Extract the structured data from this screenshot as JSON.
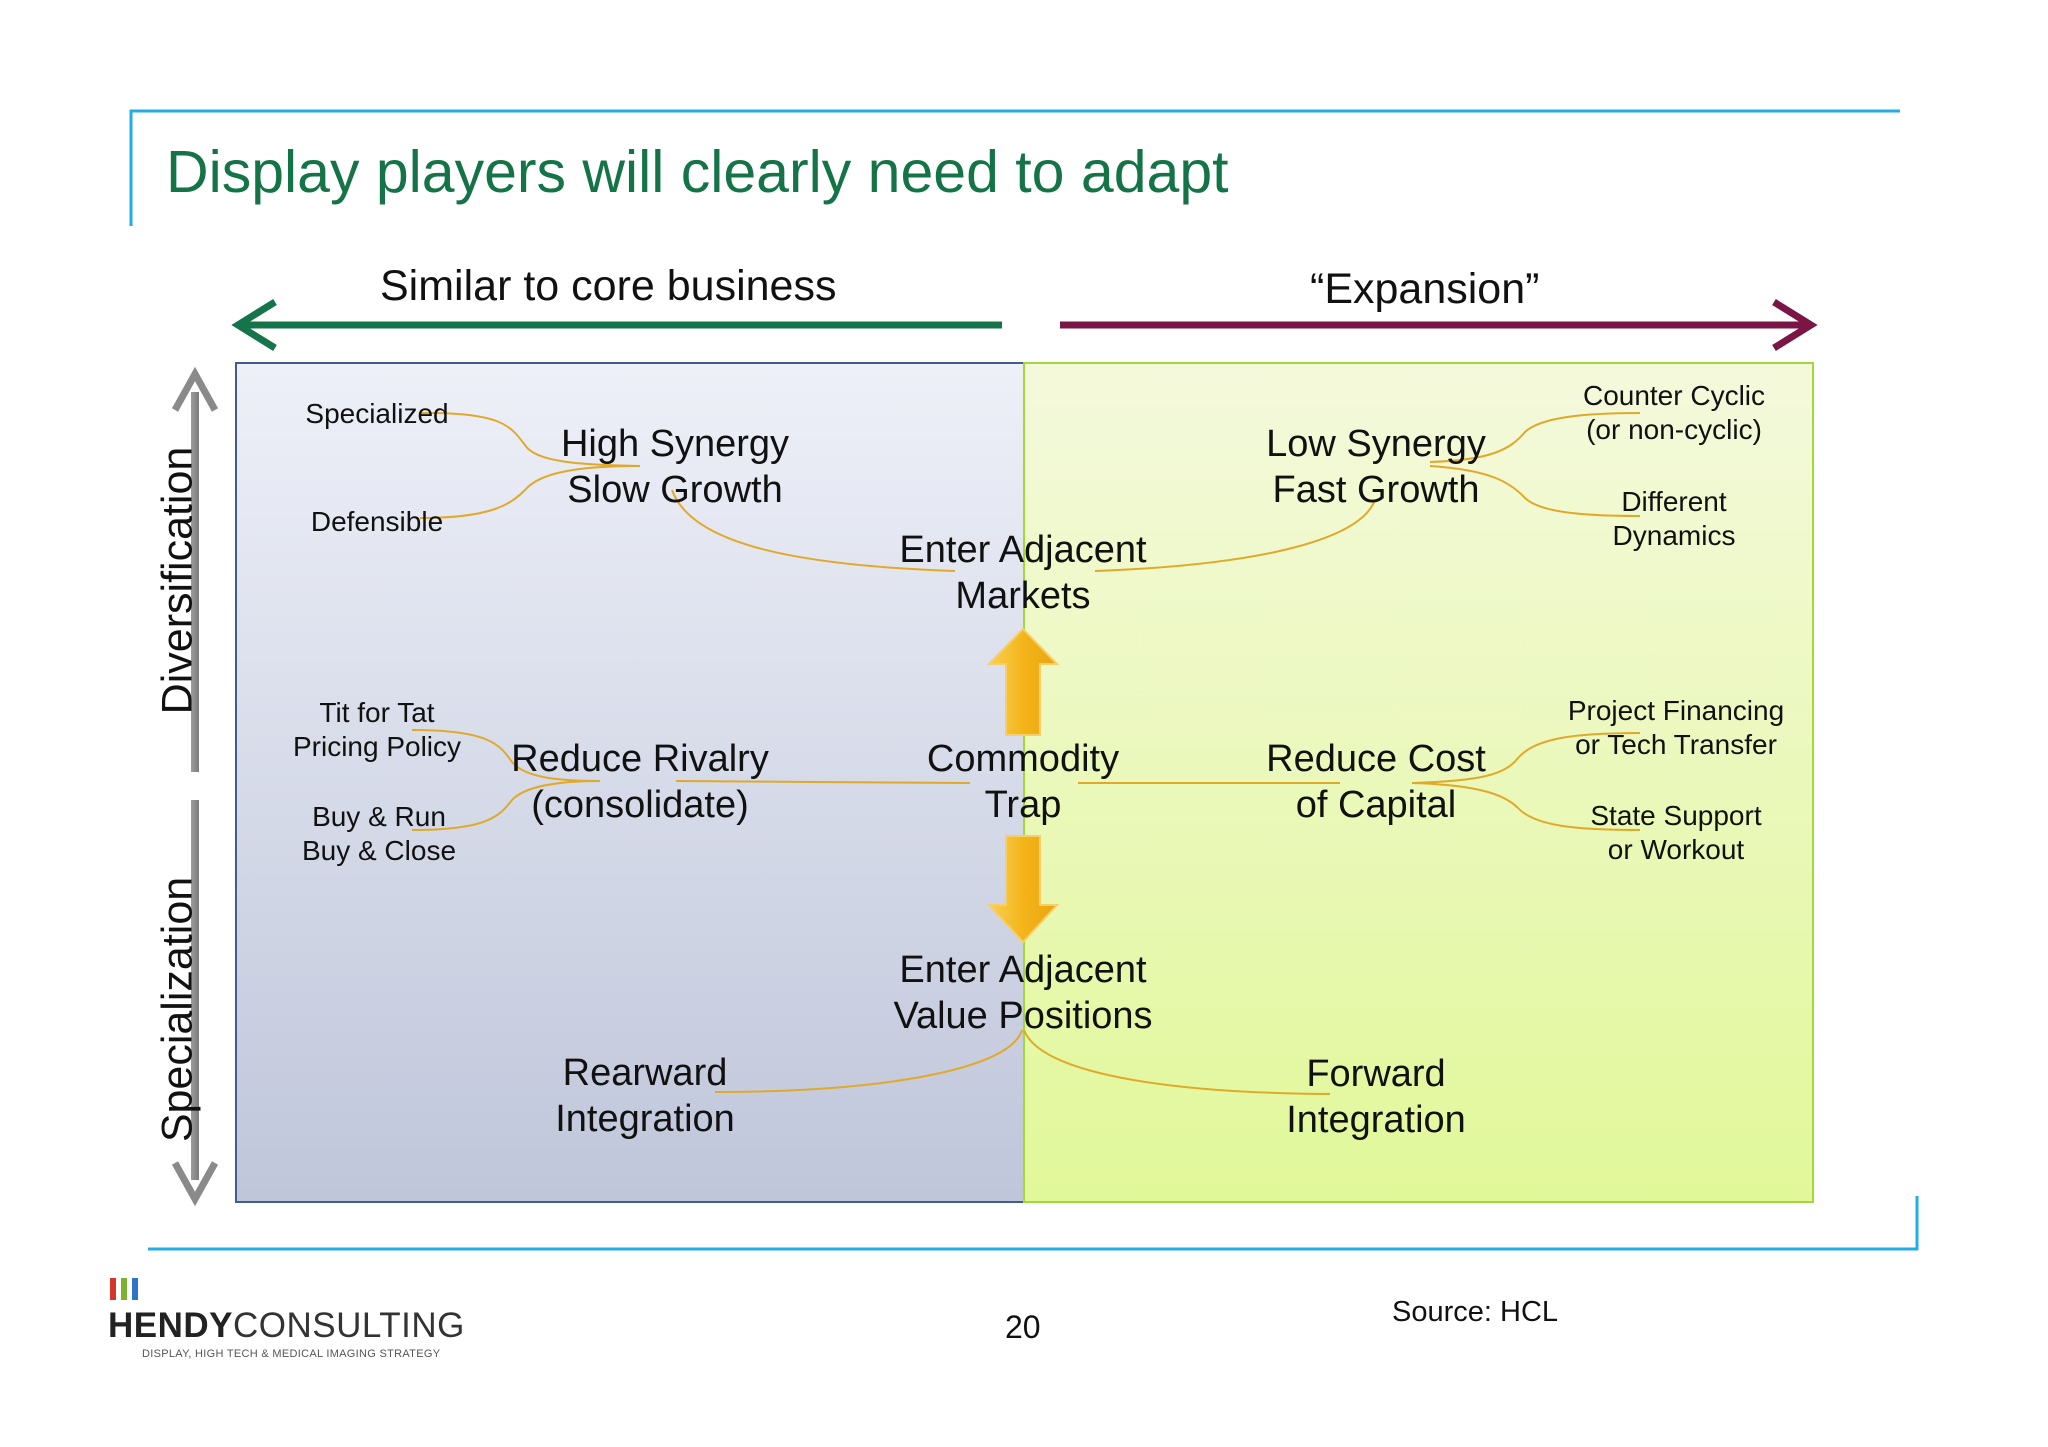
{
  "title": "Display players will clearly need to adapt",
  "top_axis": {
    "left_label": "Similar to core business",
    "right_label": "“Expansion”"
  },
  "side_axis": {
    "top_label": "Diversification",
    "bottom_label": "Specialization"
  },
  "nodes": {
    "high_synergy": [
      "High Synergy",
      "Slow Growth"
    ],
    "low_synergy": [
      "Low Synergy",
      "Fast Growth"
    ],
    "enter_markets": [
      "Enter Adjacent",
      "Markets"
    ],
    "reduce_rivalry": [
      "Reduce Rivalry",
      "(consolidate)"
    ],
    "commodity_trap": [
      "Commodity",
      "Trap"
    ],
    "reduce_cost": [
      "Reduce Cost",
      "of Capital"
    ],
    "enter_value": [
      "Enter Adjacent",
      "Value Positions"
    ],
    "rearward": [
      "Rearward",
      "Integration"
    ],
    "forward": [
      "Forward",
      "Integration"
    ]
  },
  "leaves": {
    "specialized": [
      "Specialized"
    ],
    "defensible": [
      "Defensible"
    ],
    "counter_cyclic": [
      "Counter Cyclic",
      "(or non-cyclic)"
    ],
    "different_dynamics": [
      "Different",
      "Dynamics"
    ],
    "tit_for_tat": [
      "Tit for Tat",
      "Pricing Policy"
    ],
    "buy_run": [
      "Buy & Run",
      "Buy & Close"
    ],
    "project_financing": [
      "Project Financing",
      "or Tech Transfer"
    ],
    "state_support": [
      "State Support",
      "or Workout"
    ]
  },
  "footer": {
    "page_number": "20",
    "source": "Source: HCL",
    "logo_bold": "HENDY",
    "logo_light": "CONSULTING",
    "logo_tagline": "DISPLAY, HIGH TECH & MEDICAL IMAGING STRATEGY"
  },
  "colors": {
    "title": "#157447",
    "left_arrow": "#15744a",
    "right_arrow": "#7a1545",
    "frame_lines": "#22aee5",
    "left_panel_top": "#eef0f8",
    "left_panel_bottom": "#c0c7dc",
    "right_panel_top": "#f3f9da",
    "right_panel_bottom": "#e2f99b",
    "connector": "#e0a92a",
    "block_arrow": "#f5b71c"
  }
}
